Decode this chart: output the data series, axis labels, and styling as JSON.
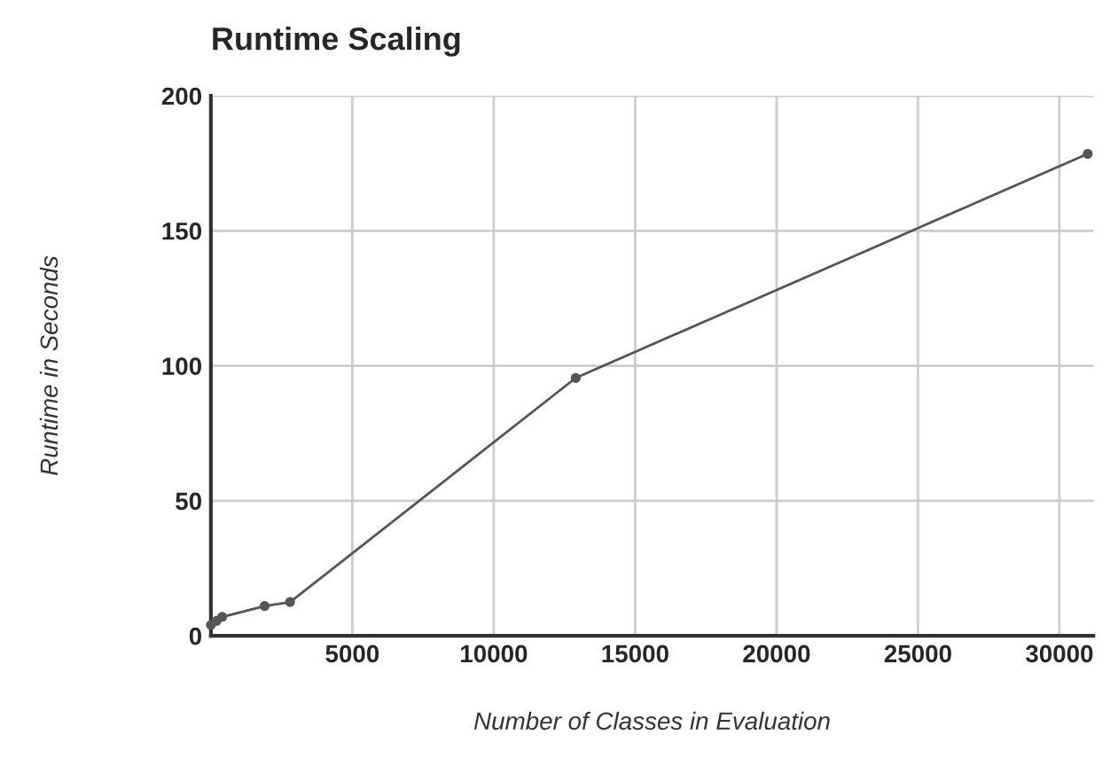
{
  "chart_data": {
    "type": "line",
    "title": "Runtime Scaling",
    "xlabel": "Number of Classes in Evaluation",
    "ylabel": "Runtime in Seconds",
    "x": [
      0,
      200,
      400,
      1900,
      2800,
      12900,
      31000
    ],
    "series": [
      {
        "color": "#555555",
        "values": [
          4,
          5.5,
          7,
          11,
          12.5,
          95.5,
          178.5
        ]
      }
    ],
    "xlim": [
      0,
      31200
    ],
    "xticks": [
      5000,
      10000,
      15000,
      20000,
      25000,
      30000
    ],
    "ylim": [
      0,
      200
    ],
    "yticks": [
      0,
      50,
      100,
      150,
      200
    ],
    "grid": true,
    "marker": "circle",
    "line_style": "solid"
  }
}
